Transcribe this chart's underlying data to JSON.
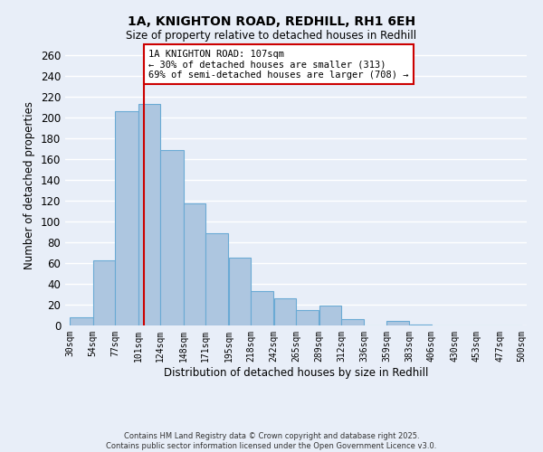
{
  "title": "1A, KNIGHTON ROAD, REDHILL, RH1 6EH",
  "subtitle": "Size of property relative to detached houses in Redhill",
  "xlabel": "Distribution of detached houses by size in Redhill",
  "ylabel": "Number of detached properties",
  "bin_edges": [
    30,
    54,
    77,
    101,
    124,
    148,
    171,
    195,
    218,
    242,
    265,
    289,
    312,
    336,
    359,
    383,
    406,
    430,
    453,
    477,
    500
  ],
  "bin_labels": [
    "30sqm",
    "54sqm",
    "77sqm",
    "101sqm",
    "124sqm",
    "148sqm",
    "171sqm",
    "195sqm",
    "218sqm",
    "242sqm",
    "265sqm",
    "289sqm",
    "312sqm",
    "336sqm",
    "359sqm",
    "383sqm",
    "406sqm",
    "430sqm",
    "453sqm",
    "477sqm",
    "500sqm"
  ],
  "bar_heights": [
    8,
    63,
    206,
    213,
    169,
    118,
    89,
    65,
    33,
    26,
    15,
    19,
    6,
    0,
    4,
    1,
    0,
    0,
    0,
    0
  ],
  "bar_color": "#adc6e0",
  "bar_edge_color": "#6aaad4",
  "property_value": 107,
  "vline_color": "#cc0000",
  "ylim": [
    0,
    270
  ],
  "yticks": [
    0,
    20,
    40,
    60,
    80,
    100,
    120,
    140,
    160,
    180,
    200,
    220,
    240,
    260
  ],
  "annotation_title": "1A KNIGHTON ROAD: 107sqm",
  "annotation_line1": "← 30% of detached houses are smaller (313)",
  "annotation_line2": "69% of semi-detached houses are larger (708) →",
  "annotation_box_color": "#ffffff",
  "annotation_box_edge_color": "#cc0000",
  "background_color": "#e8eef8",
  "grid_color": "#ffffff",
  "footer_line1": "Contains HM Land Registry data © Crown copyright and database right 2025.",
  "footer_line2": "Contains public sector information licensed under the Open Government Licence v3.0."
}
